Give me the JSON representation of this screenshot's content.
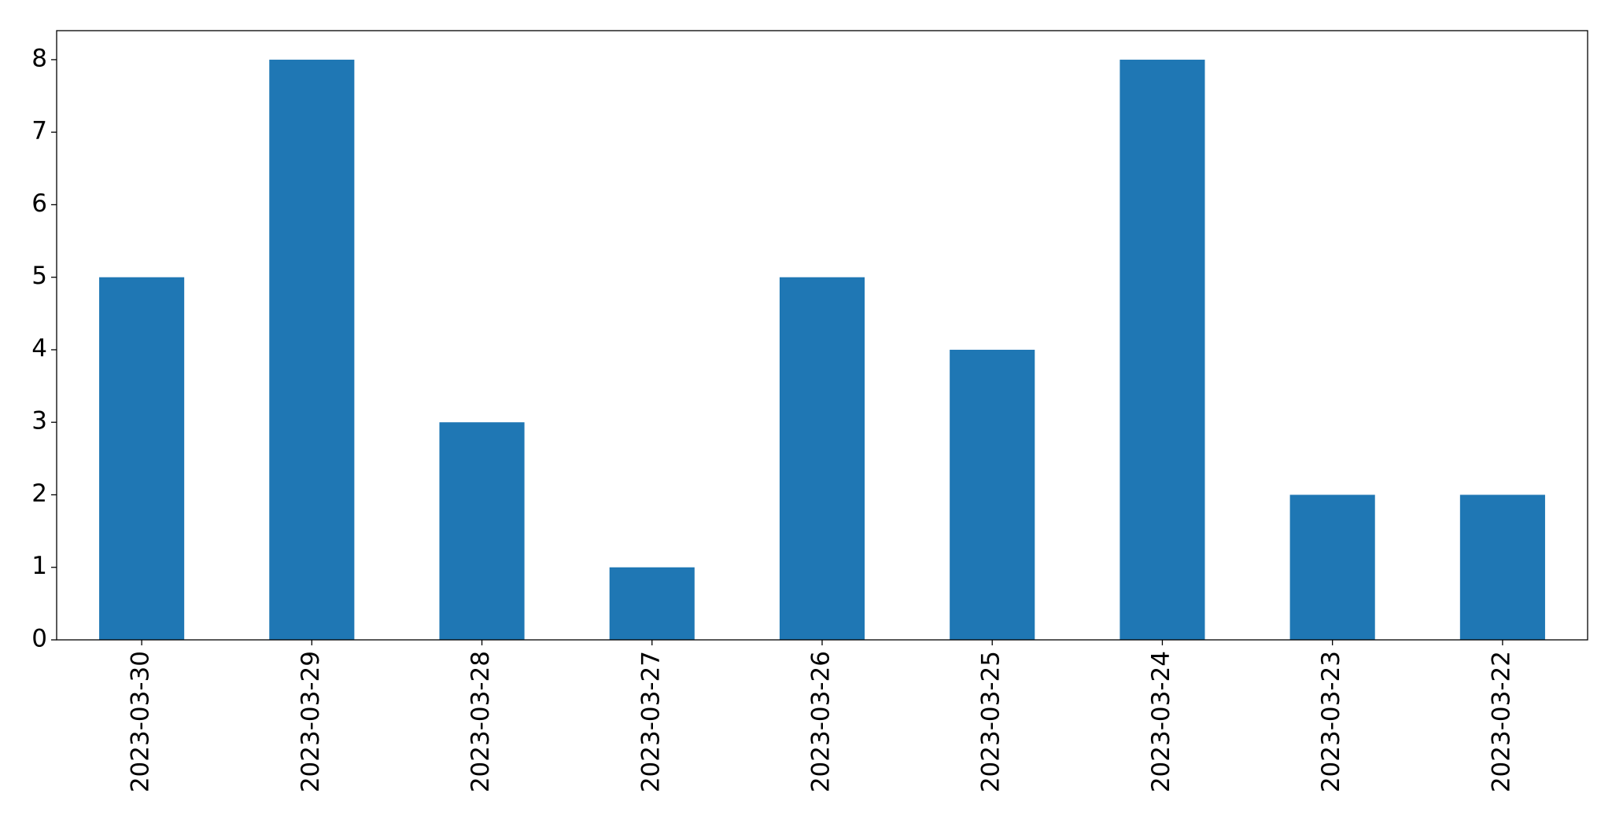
{
  "chart_data": {
    "type": "bar",
    "categories": [
      "2023-03-30",
      "2023-03-29",
      "2023-03-28",
      "2023-03-27",
      "2023-03-26",
      "2023-03-25",
      "2023-03-24",
      "2023-03-23",
      "2023-03-22"
    ],
    "values": [
      5,
      8,
      3,
      1,
      5,
      4,
      8,
      2,
      2
    ],
    "color": "#1f77b4",
    "ylim": [
      0,
      8.4
    ],
    "yticks": [
      0,
      1,
      2,
      3,
      4,
      5,
      6,
      7,
      8
    ],
    "grid": false
  }
}
